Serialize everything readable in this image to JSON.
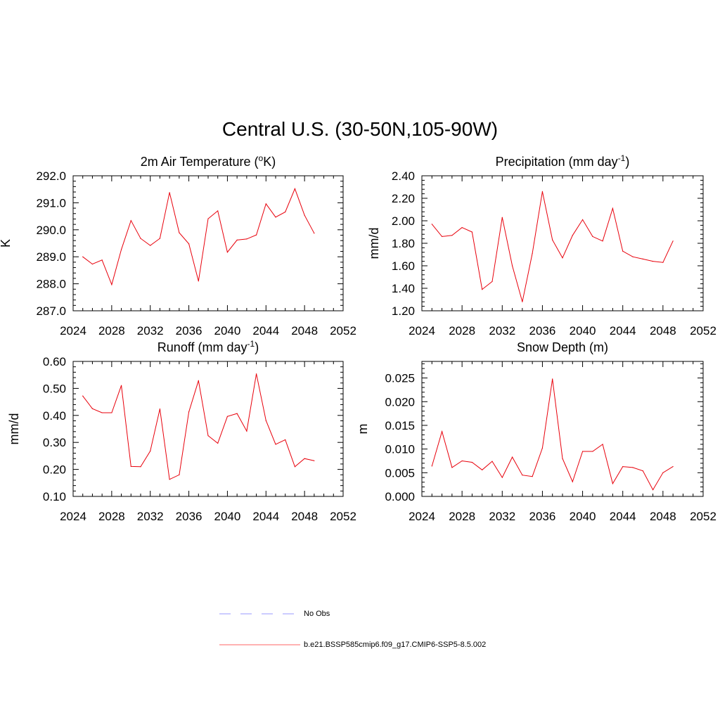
{
  "title": "Central U.S. (30-50N,105-90W)",
  "chart_data": [
    {
      "type": "line",
      "title": "2m Air Temperature (°K)",
      "title_parts": {
        "pre": "2m Air Temperature (",
        "sup": "o",
        "post": "K)"
      },
      "ylabel": "K",
      "xlabel": "",
      "xlim": [
        2024,
        2052
      ],
      "ylim": [
        287.0,
        292.0
      ],
      "xticks": [
        "2024",
        "2028",
        "2032",
        "2036",
        "2040",
        "2044",
        "2048",
        "2052"
      ],
      "yticks": [
        "287.0",
        "288.0",
        "289.0",
        "290.0",
        "291.0",
        "292.0"
      ],
      "grid": false,
      "series": [
        {
          "color": "#e8000b",
          "x": [
            2025,
            2026,
            2027,
            2028,
            2029,
            2030,
            2031,
            2032,
            2033,
            2034,
            2035,
            2036,
            2037,
            2038,
            2039,
            2040,
            2041,
            2042,
            2043,
            2044,
            2045,
            2046,
            2047,
            2048,
            2049
          ],
          "values": [
            289.0,
            288.73,
            288.88,
            287.97,
            289.27,
            290.34,
            289.68,
            289.42,
            289.68,
            291.38,
            289.89,
            289.48,
            288.1,
            290.41,
            290.7,
            289.17,
            289.62,
            289.66,
            289.81,
            290.96,
            290.47,
            290.66,
            291.52,
            290.54,
            289.87
          ]
        }
      ]
    },
    {
      "type": "line",
      "title": "Precipitation (mm day-1)",
      "title_parts": {
        "pre": "Precipitation (mm day",
        "sup": "-1",
        "post": ")"
      },
      "ylabel": "mm/d",
      "xlabel": "",
      "xlim": [
        2024,
        2052
      ],
      "ylim": [
        1.2,
        2.4
      ],
      "xticks": [
        "2024",
        "2028",
        "2032",
        "2036",
        "2040",
        "2044",
        "2048",
        "2052"
      ],
      "yticks": [
        "1.20",
        "1.40",
        "1.60",
        "1.80",
        "2.00",
        "2.20",
        "2.40"
      ],
      "grid": false,
      "series": [
        {
          "color": "#e8000b",
          "x": [
            2025,
            2026,
            2027,
            2028,
            2029,
            2030,
            2031,
            2032,
            2033,
            2034,
            2035,
            2036,
            2037,
            2038,
            2039,
            2040,
            2041,
            2042,
            2043,
            2044,
            2045,
            2046,
            2047,
            2048,
            2049
          ],
          "values": [
            1.97,
            1.86,
            1.87,
            1.94,
            1.9,
            1.39,
            1.46,
            2.03,
            1.6,
            1.28,
            1.71,
            2.26,
            1.83,
            1.67,
            1.87,
            2.01,
            1.86,
            1.82,
            2.11,
            1.73,
            1.68,
            1.66,
            1.64,
            1.63,
            1.82
          ]
        }
      ]
    },
    {
      "type": "line",
      "title": "Runoff (mm day-1)",
      "title_parts": {
        "pre": "Runoff (mm day",
        "sup": "-1",
        "post": ")"
      },
      "ylabel": "mm/d",
      "xlabel": "",
      "xlim": [
        2024,
        2052
      ],
      "ylim": [
        0.1,
        0.6
      ],
      "xticks": [
        "2024",
        "2028",
        "2032",
        "2036",
        "2040",
        "2044",
        "2048",
        "2052"
      ],
      "yticks": [
        "0.10",
        "0.20",
        "0.30",
        "0.40",
        "0.50",
        "0.60"
      ],
      "grid": false,
      "series": [
        {
          "color": "#e8000b",
          "x": [
            2025,
            2026,
            2027,
            2028,
            2029,
            2030,
            2031,
            2032,
            2033,
            2034,
            2035,
            2036,
            2037,
            2038,
            2039,
            2040,
            2041,
            2042,
            2043,
            2044,
            2045,
            2046,
            2047,
            2048,
            2049
          ],
          "values": [
            0.472,
            0.425,
            0.41,
            0.41,
            0.511,
            0.211,
            0.21,
            0.268,
            0.424,
            0.163,
            0.18,
            0.413,
            0.529,
            0.325,
            0.297,
            0.396,
            0.407,
            0.342,
            0.554,
            0.381,
            0.293,
            0.31,
            0.21,
            0.24,
            0.232
          ]
        }
      ]
    },
    {
      "type": "line",
      "title": "Snow Depth (m)",
      "title_parts": {
        "pre": "Snow Depth (m)",
        "sup": "",
        "post": ""
      },
      "ylabel": "m",
      "xlabel": "",
      "xlim": [
        2024,
        2052
      ],
      "ylim": [
        0.0,
        0.0285
      ],
      "xticks": [
        "2024",
        "2028",
        "2032",
        "2036",
        "2040",
        "2044",
        "2048",
        "2052"
      ],
      "yticks": [
        "0.000",
        "0.005",
        "0.010",
        "0.015",
        "0.020",
        "0.025"
      ],
      "grid": false,
      "series": [
        {
          "color": "#e8000b",
          "x": [
            2025,
            2026,
            2027,
            2028,
            2029,
            2030,
            2031,
            2032,
            2033,
            2034,
            2035,
            2036,
            2037,
            2038,
            2039,
            2040,
            2041,
            2042,
            2043,
            2044,
            2045,
            2046,
            2047,
            2048,
            2049
          ],
          "values": [
            0.0064,
            0.0137,
            0.0061,
            0.0075,
            0.0072,
            0.0056,
            0.0074,
            0.004,
            0.0083,
            0.0045,
            0.0042,
            0.0102,
            0.0248,
            0.008,
            0.0031,
            0.0095,
            0.0095,
            0.011,
            0.0027,
            0.0063,
            0.0061,
            0.0054,
            0.0014,
            0.005,
            0.0063
          ]
        }
      ]
    }
  ],
  "legend": [
    {
      "label": "No Obs",
      "color": "#9999ff",
      "style": "dashed"
    },
    {
      "label": "b.e21.BSSP585cmip6.f09_g17.CMIP6-SSP5-8.5.002",
      "color": "#ff6666",
      "style": "solid"
    }
  ]
}
